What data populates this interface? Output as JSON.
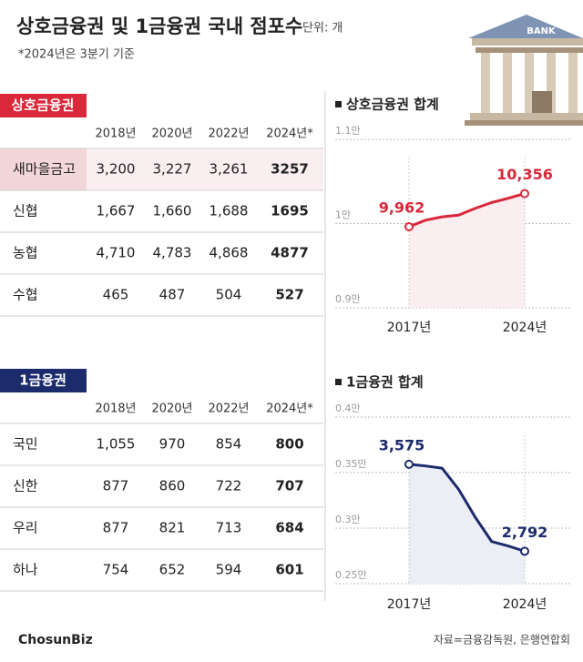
{
  "header": {
    "title": "상호금융권 및 1금융권 국내 점포수",
    "unit": "단위: 개",
    "note": "*2024년은 3분기 기준",
    "bank_sign": "BANK"
  },
  "tables": [
    {
      "label": "상호금융권",
      "columns": [
        "2018년",
        "2020년",
        "2022년",
        "2024년*"
      ],
      "rows": [
        [
          "새마을금고",
          "3,200",
          "3,227",
          "3,261",
          "3257"
        ],
        [
          "신협",
          "1,667",
          "1,660",
          "1,688",
          "1695"
        ],
        [
          "농협",
          "4,710",
          "4,783",
          "4,868",
          "4877"
        ],
        [
          "수협",
          "465",
          "487",
          "504",
          "527"
        ]
      ]
    },
    {
      "label": "1금융권",
      "columns": [
        "2018년",
        "2020년",
        "2022년",
        "2024년*"
      ],
      "rows": [
        [
          "국민",
          "1,055",
          "970",
          "854",
          "800"
        ],
        [
          "신한",
          "877",
          "860",
          "722",
          "707"
        ],
        [
          "우리",
          "877",
          "821",
          "713",
          "684"
        ],
        [
          "하나",
          "754",
          "652",
          "594",
          "601"
        ]
      ]
    }
  ],
  "chart_data": [
    {
      "type": "line",
      "title": "상호금융권 합계",
      "color": "#d9283a",
      "area_color": "#fbeef0",
      "x": [
        2017,
        2018,
        2019,
        2020,
        2021,
        2022,
        2023,
        2024
      ],
      "values": [
        9962,
        10040,
        10080,
        10100,
        10180,
        10250,
        10300,
        10356
      ],
      "value_labels": [
        "9,962",
        null,
        null,
        null,
        null,
        null,
        null,
        "10,356"
      ],
      "xlim": [
        2017,
        2024
      ],
      "xticks": [
        {
          "value": 2017,
          "label": "2017년"
        },
        {
          "value": 2024,
          "label": "2024년"
        }
      ],
      "ylim": [
        9000,
        11000
      ],
      "yticks": [
        {
          "value": 9000,
          "label": "0.9만"
        },
        {
          "value": 10000,
          "label": "1만"
        },
        {
          "value": 11000,
          "label": "1.1만"
        }
      ],
      "grid": true
    },
    {
      "type": "line",
      "title": "1금융권 합계",
      "color": "#1c2b6b",
      "area_color": "#eceef6",
      "x": [
        2017,
        2018,
        2019,
        2020,
        2021,
        2022,
        2023,
        2024
      ],
      "values": [
        3575,
        3560,
        3540,
        3350,
        3100,
        2880,
        2840,
        2792
      ],
      "value_labels": [
        "3,575",
        null,
        null,
        null,
        null,
        null,
        null,
        "2,792"
      ],
      "xlim": [
        2017,
        2024
      ],
      "xticks": [
        {
          "value": 2017,
          "label": "2017년"
        },
        {
          "value": 2024,
          "label": "2024년"
        }
      ],
      "ylim": [
        2500,
        4000
      ],
      "yticks": [
        {
          "value": 2500,
          "label": "0.25만"
        },
        {
          "value": 3000,
          "label": "0.3만"
        },
        {
          "value": 3500,
          "label": "0.35만"
        },
        {
          "value": 4000,
          "label": "0.4만"
        }
      ],
      "grid": true
    }
  ],
  "footer": {
    "logo": "ChosunBiz",
    "source": "자료=금융감독원, 은행연합회"
  }
}
